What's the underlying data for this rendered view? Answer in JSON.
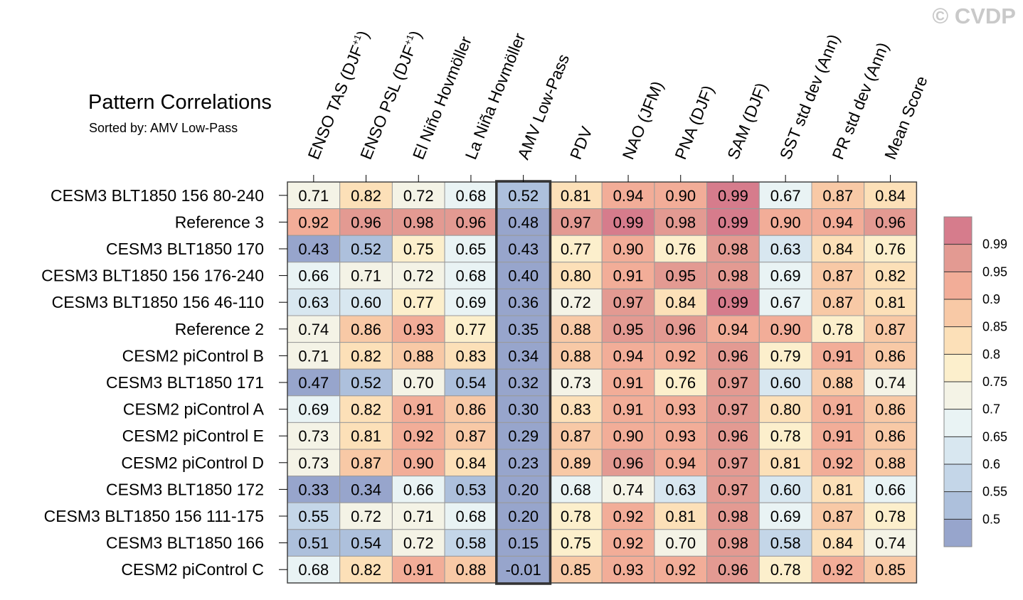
{
  "chart_data": {
    "type": "heatmap",
    "title": "Pattern Correlations",
    "subtitle": "Sorted by: AMV Low-Pass",
    "watermark": "© CVDP",
    "highlighted_column": "AMV Low-Pass",
    "columns": [
      "ENSO TAS (DJF+1)",
      "ENSO PSL (DJF+1)",
      "El Niño Hovmöller",
      "La Niña Hovmöller",
      "AMV Low-Pass",
      "PDV",
      "NAO (JFM)",
      "PNA (DJF)",
      "SAM (DJF)",
      "SST std dev (Ann)",
      "PR std dev (Ann)",
      "Mean Score"
    ],
    "rows": [
      {
        "name": "CESM3 BLT1850 156 80-240",
        "values": [
          0.71,
          0.82,
          0.72,
          0.68,
          0.52,
          0.81,
          0.94,
          0.9,
          0.99,
          0.67,
          0.87,
          0.84
        ]
      },
      {
        "name": "Reference 3",
        "values": [
          0.92,
          0.96,
          0.98,
          0.96,
          0.48,
          0.97,
          0.99,
          0.98,
          0.99,
          0.9,
          0.94,
          0.96
        ]
      },
      {
        "name": "CESM3 BLT1850 170",
        "values": [
          0.43,
          0.52,
          0.75,
          0.65,
          0.43,
          0.77,
          0.9,
          0.76,
          0.98,
          0.63,
          0.84,
          0.76
        ]
      },
      {
        "name": "CESM3 BLT1850 156 176-240",
        "values": [
          0.66,
          0.71,
          0.72,
          0.68,
          0.4,
          0.8,
          0.91,
          0.95,
          0.98,
          0.69,
          0.87,
          0.82
        ]
      },
      {
        "name": "CESM3 BLT1850 156 46-110",
        "values": [
          0.63,
          0.6,
          0.77,
          0.69,
          0.36,
          0.72,
          0.97,
          0.84,
          0.99,
          0.67,
          0.87,
          0.81
        ]
      },
      {
        "name": "Reference 2",
        "values": [
          0.74,
          0.86,
          0.93,
          0.77,
          0.35,
          0.88,
          0.95,
          0.96,
          0.94,
          0.9,
          0.78,
          0.87
        ]
      },
      {
        "name": "CESM2 piControl B",
        "values": [
          0.71,
          0.82,
          0.88,
          0.83,
          0.34,
          0.88,
          0.94,
          0.92,
          0.96,
          0.79,
          0.91,
          0.86
        ]
      },
      {
        "name": "CESM3 BLT1850 171",
        "values": [
          0.47,
          0.52,
          0.7,
          0.54,
          0.32,
          0.73,
          0.91,
          0.76,
          0.97,
          0.6,
          0.88,
          0.74
        ]
      },
      {
        "name": "CESM2 piControl A",
        "values": [
          0.69,
          0.82,
          0.91,
          0.86,
          0.3,
          0.83,
          0.91,
          0.93,
          0.97,
          0.8,
          0.91,
          0.86
        ]
      },
      {
        "name": "CESM2 piControl E",
        "values": [
          0.73,
          0.81,
          0.92,
          0.87,
          0.29,
          0.87,
          0.9,
          0.93,
          0.96,
          0.78,
          0.91,
          0.86
        ]
      },
      {
        "name": "CESM2 piControl D",
        "values": [
          0.73,
          0.87,
          0.9,
          0.84,
          0.23,
          0.89,
          0.96,
          0.94,
          0.97,
          0.81,
          0.92,
          0.88
        ]
      },
      {
        "name": "CESM3 BLT1850 172",
        "values": [
          0.33,
          0.34,
          0.66,
          0.53,
          0.2,
          0.68,
          0.74,
          0.63,
          0.97,
          0.6,
          0.81,
          0.66
        ]
      },
      {
        "name": "CESM3 BLT1850 156 111-175",
        "values": [
          0.55,
          0.72,
          0.71,
          0.68,
          0.2,
          0.78,
          0.92,
          0.81,
          0.98,
          0.69,
          0.87,
          0.78
        ]
      },
      {
        "name": "CESM3 BLT1850 166",
        "values": [
          0.51,
          0.54,
          0.72,
          0.58,
          0.15,
          0.75,
          0.92,
          0.7,
          0.98,
          0.58,
          0.84,
          0.74
        ]
      },
      {
        "name": "CESM2 piControl C",
        "values": [
          0.68,
          0.82,
          0.91,
          0.88,
          -0.01,
          0.85,
          0.93,
          0.92,
          0.96,
          0.78,
          0.92,
          0.85
        ]
      }
    ],
    "colorbar": {
      "levels": [
        0.5,
        0.55,
        0.6,
        0.65,
        0.7,
        0.75,
        0.8,
        0.85,
        0.9,
        0.95,
        0.99
      ],
      "labels": [
        "0.5",
        "0.55",
        "0.6",
        "0.65",
        "0.7",
        "0.75",
        "0.8",
        "0.85",
        "0.9",
        "0.95",
        "0.99"
      ],
      "colors": [
        "#97a5cc",
        "#adc0dc",
        "#c4d6e8",
        "#d8e7f0",
        "#e9f3f4",
        "#f4f3e6",
        "#fcefcc",
        "#fce0b8",
        "#f8c9a6",
        "#f2ad98",
        "#e39a92",
        "#d67c8c"
      ]
    }
  }
}
